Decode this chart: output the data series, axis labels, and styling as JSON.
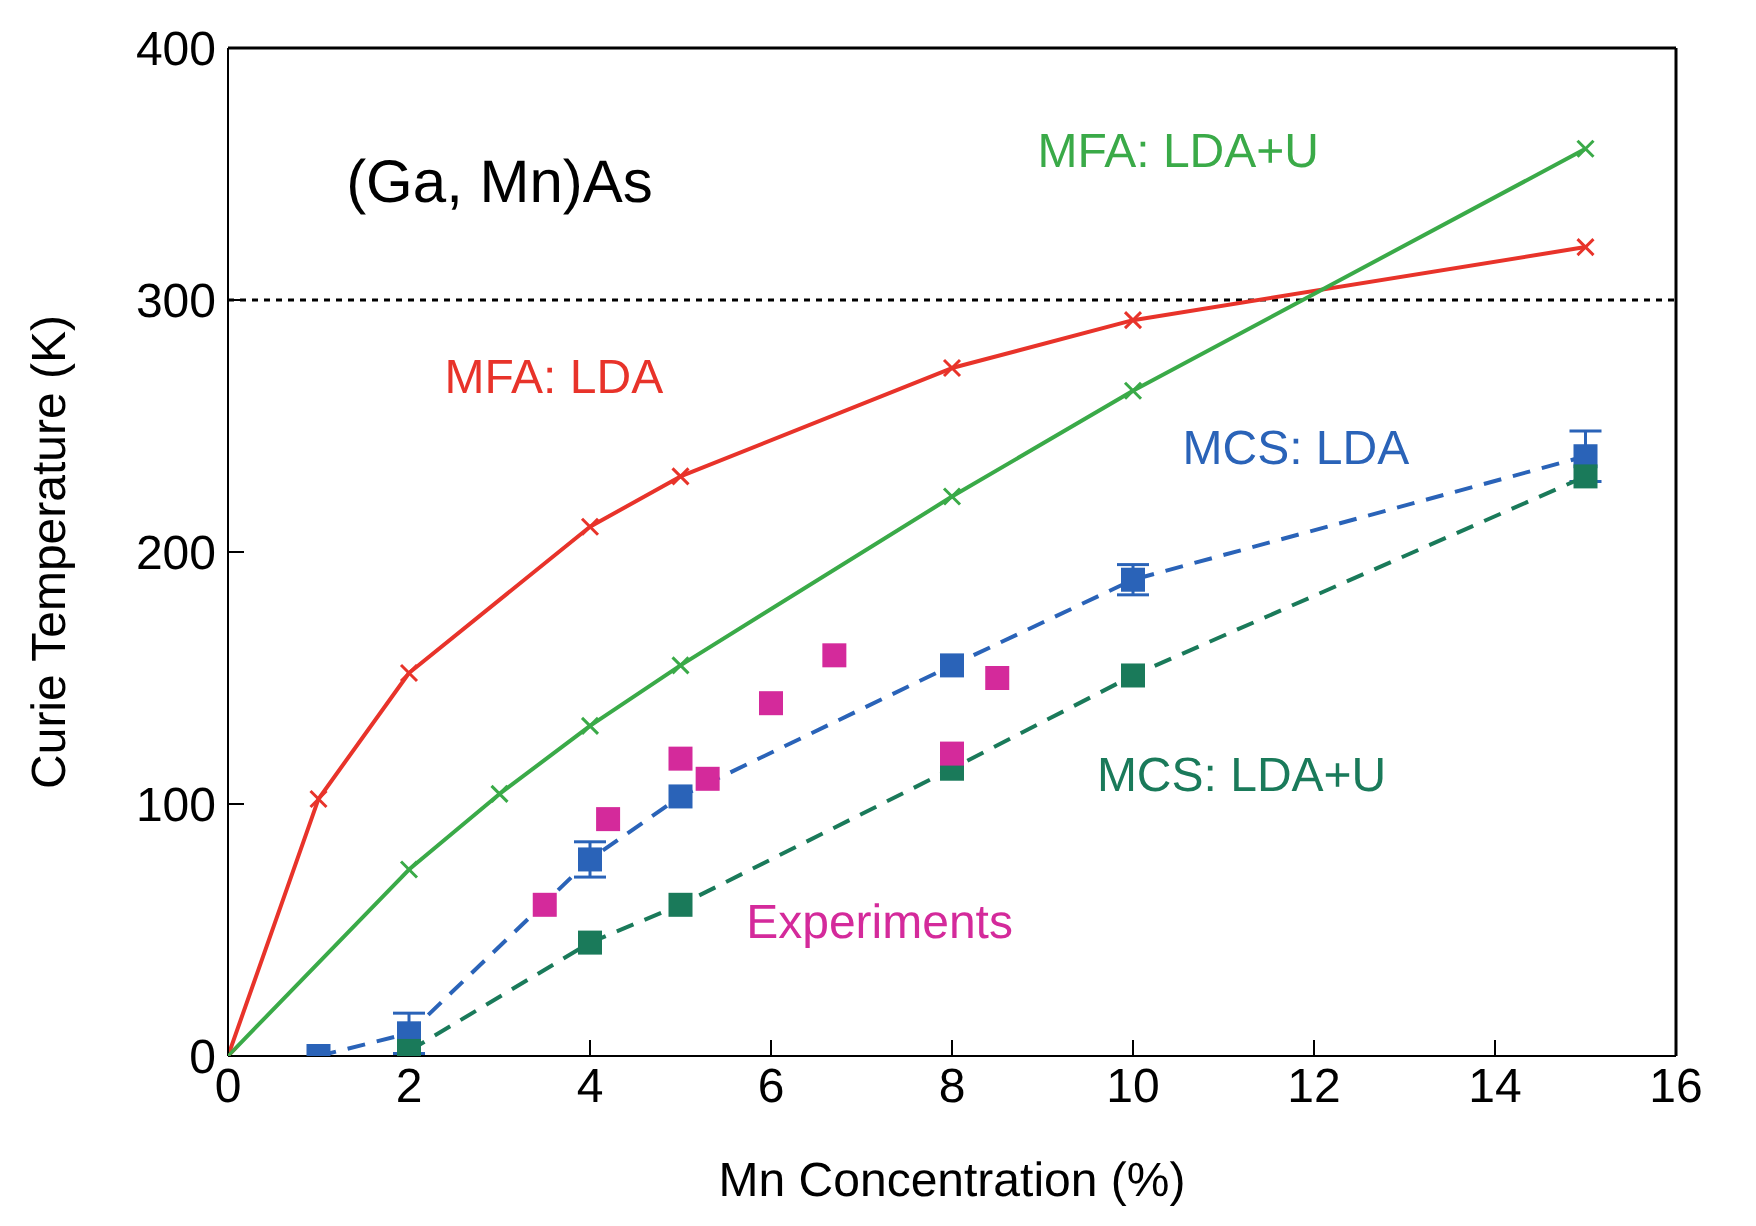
{
  "chart_data": {
    "type": "line",
    "xlabel": "Mn Concentration (%)",
    "ylabel": "Curie Temperature (K)",
    "xlim": [
      0,
      16
    ],
    "xticks": [
      0,
      2,
      4,
      6,
      8,
      10,
      12,
      14,
      16
    ],
    "ylim": [
      0,
      400
    ],
    "yticks": [
      0,
      100,
      200,
      300,
      400
    ],
    "annotations": [
      "(Ga, Mn)As"
    ],
    "ref_lines": [
      {
        "axis": "y",
        "value": 300,
        "color": "#000000",
        "line_style": "dotted"
      }
    ],
    "series": [
      {
        "name": "MFA: LDA",
        "color": "#e8332a",
        "marker": "cross",
        "line_style": "solid",
        "x": [
          0,
          1,
          2,
          4,
          5,
          8,
          10,
          15
        ],
        "values": [
          0,
          102,
          152,
          210,
          230,
          273,
          292,
          321
        ]
      },
      {
        "name": "MFA: LDA+U",
        "color": "#3aaa48",
        "marker": "cross",
        "line_style": "solid",
        "x": [
          0,
          2,
          3,
          4,
          5,
          8,
          10,
          15
        ],
        "values": [
          0,
          74,
          104,
          131,
          155,
          222,
          264,
          360
        ]
      },
      {
        "name": "MCS: LDA",
        "color": "#2a63b8",
        "marker": "square",
        "line_style": "dashed",
        "x": [
          1,
          2,
          4,
          5,
          8,
          10,
          15
        ],
        "values": [
          0,
          9,
          78,
          103,
          155,
          189,
          238
        ],
        "errors": [
          null,
          8,
          7,
          null,
          null,
          6,
          10
        ]
      },
      {
        "name": "MCS: LDA+U",
        "color": "#1a7a5a",
        "marker": "square",
        "line_style": "dashed",
        "x": [
          2,
          4,
          5,
          8,
          10,
          15
        ],
        "values": [
          2,
          45,
          60,
          114,
          151,
          230
        ]
      },
      {
        "name": "Experiments",
        "type": "scatter",
        "color": "#d42a9b",
        "marker": "square",
        "x": [
          3.5,
          4.2,
          5,
          5.3,
          6,
          6.7,
          8,
          8.5
        ],
        "values": [
          60,
          94,
          118,
          110,
          140,
          159,
          120,
          150
        ]
      }
    ]
  }
}
